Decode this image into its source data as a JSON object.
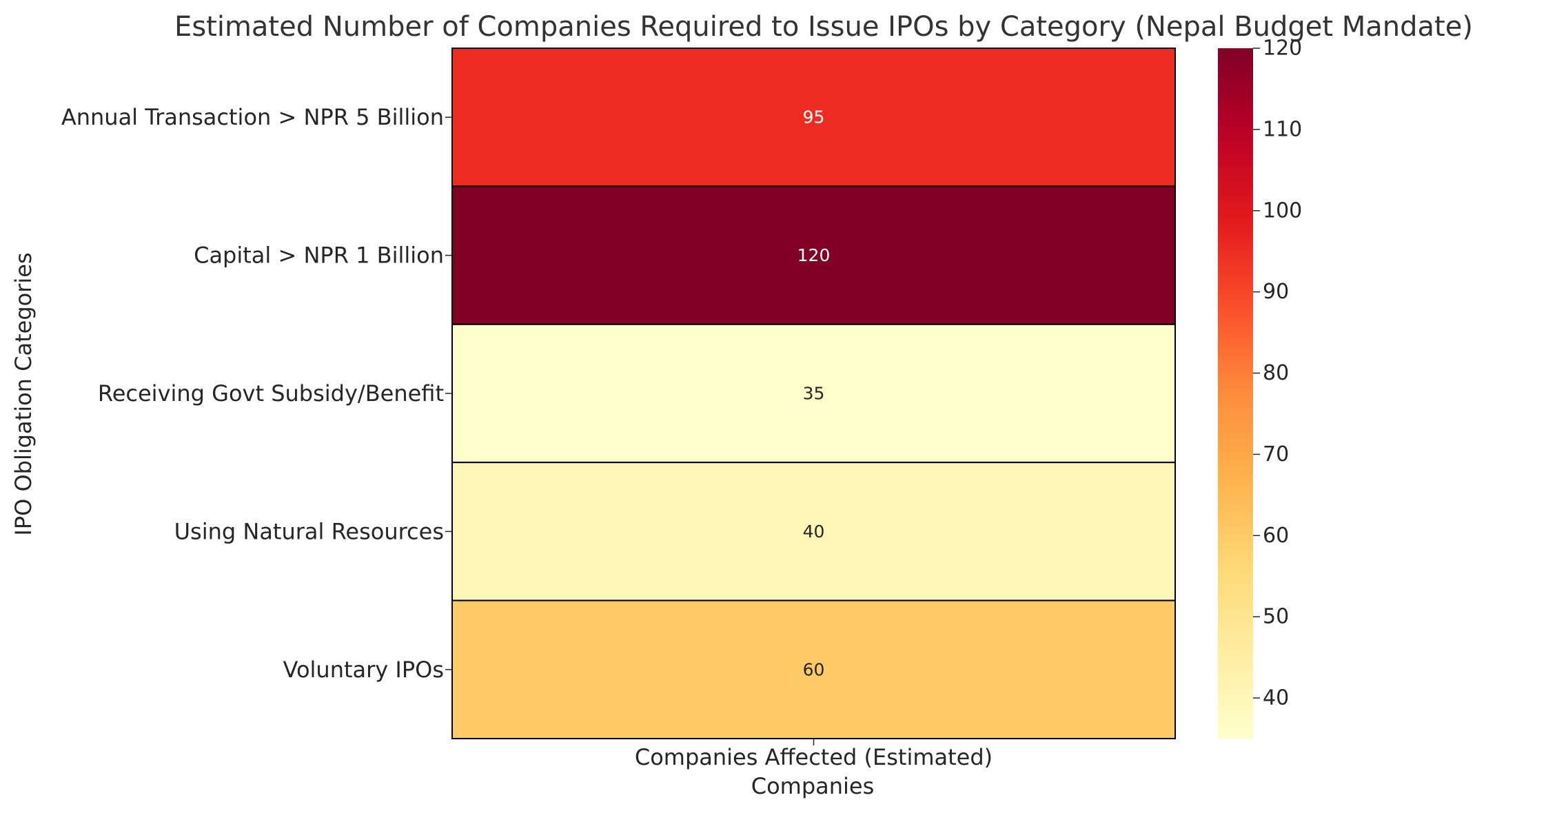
{
  "chart_data": {
    "type": "heatmap",
    "title": "Estimated Number of Companies Required to Issue IPOs by Category (Nepal Budget Mandate)",
    "xlabel": "Companies",
    "ylabel": "IPO Obligation Categories",
    "columns": [
      "Companies Affected (Estimated)"
    ],
    "rows": [
      "Annual Transaction > NPR 5 Billion",
      "Capital > NPR 1 Billion",
      "Receiving Govt Subsidy/Benefit",
      "Using Natural Resources",
      "Voluntary IPOs"
    ],
    "values": [
      95,
      120,
      35,
      40,
      60
    ],
    "colormap": "YlOrRd",
    "colorbar": {
      "range": [
        35,
        120
      ],
      "ticks": [
        40,
        50,
        60,
        70,
        80,
        90,
        100,
        110,
        120
      ]
    },
    "annotations": true,
    "colors": {
      "text": "#262626",
      "cell_border": "#000000",
      "annotation_dark": "#262626",
      "annotation_light": "#ffffff"
    }
  }
}
